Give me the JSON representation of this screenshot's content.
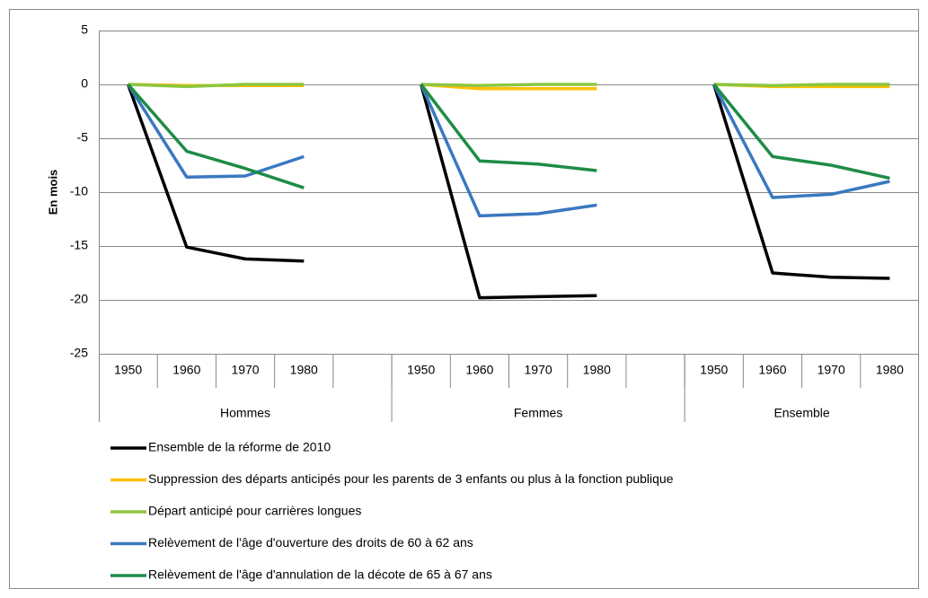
{
  "chart_data": {
    "type": "line",
    "y_label": "En mois",
    "categories": [
      "1950",
      "1960",
      "1970",
      "1980",
      null,
      "1950",
      "1960",
      "1970",
      "1980",
      null,
      "1950",
      "1960",
      "1970",
      "1980"
    ],
    "groups": [
      "Hommes",
      "Femmes",
      "Ensemble"
    ],
    "ylim": [
      -25,
      5
    ],
    "yticks": [
      -25,
      -20,
      -15,
      -10,
      -5,
      0,
      5
    ],
    "grid": true,
    "series": [
      {
        "name": "Ensemble de la réforme de 2010",
        "color": "#000000",
        "values": [
          0,
          -15.1,
          -16.2,
          -16.4,
          null,
          0,
          -19.8,
          -19.7,
          -19.6,
          null,
          0,
          -17.5,
          -17.9,
          -18.0
        ]
      },
      {
        "name": "Suppression des départs anticipés pour les parents de 3 enfants ou plus à la fonction publique",
        "color": "#ffc000",
        "values": [
          0,
          -0.1,
          -0.1,
          -0.1,
          null,
          0,
          -0.4,
          -0.4,
          -0.4,
          null,
          0,
          -0.2,
          -0.2,
          -0.2
        ]
      },
      {
        "name": "Départ anticipé pour carrières longues",
        "color": "#8dc63f",
        "values": [
          0,
          -0.2,
          0,
          0,
          null,
          0,
          -0.1,
          0,
          0,
          null,
          0,
          -0.1,
          0,
          0
        ]
      },
      {
        "name": "Relèvement de l'âge d'ouverture des droits de 60 à 62 ans",
        "color": "#3a78c0",
        "values": [
          0,
          -8.6,
          -8.5,
          -6.7,
          null,
          0,
          -12.2,
          -12.0,
          -11.2,
          null,
          0,
          -10.5,
          -10.2,
          -9.0
        ]
      },
      {
        "name": "Relèvement de l'âge d'annulation de la décote de 65 à 67 ans",
        "color": "#1e8c46",
        "values": [
          0,
          -6.2,
          -7.8,
          -9.6,
          null,
          0,
          -7.1,
          -7.4,
          -8.0,
          null,
          0,
          -6.7,
          -7.5,
          -8.7
        ]
      }
    ]
  }
}
